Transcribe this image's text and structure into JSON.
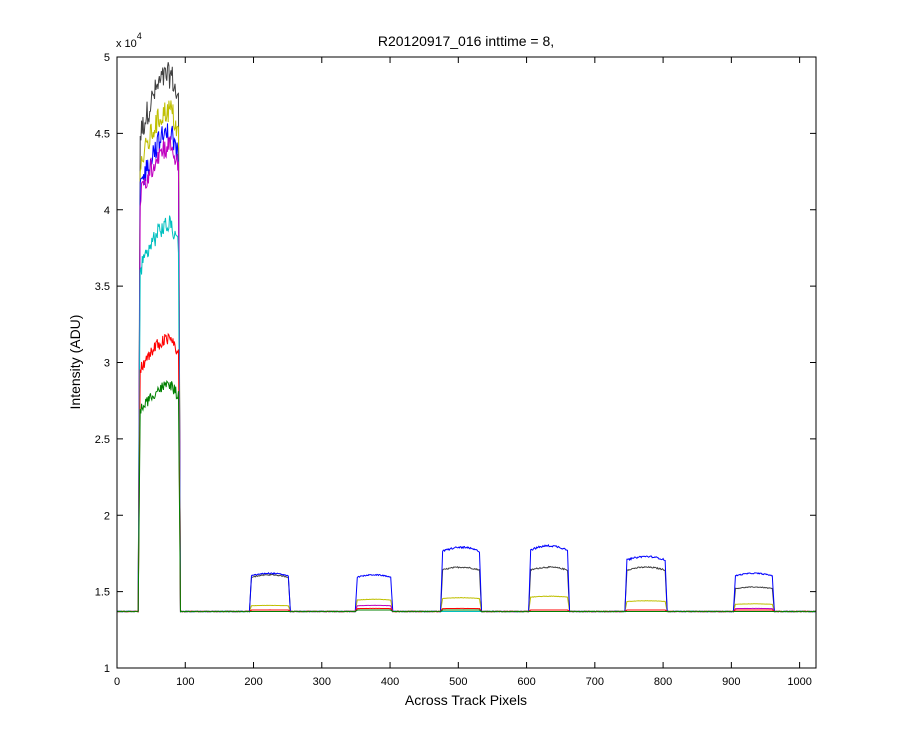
{
  "chart_data": {
    "type": "line",
    "title": "R20120917_016 inttime = 8,",
    "xlabel": "Across Track Pixels",
    "ylabel": "Intensity (ADU)",
    "xlim": [
      0,
      1024
    ],
    "ylim": [
      10000,
      50000
    ],
    "y_exponent_label": "x 10",
    "y_exponent_power": "4",
    "xticks": [
      0,
      100,
      200,
      300,
      400,
      500,
      600,
      700,
      800,
      900,
      1000
    ],
    "yticks": [
      10000,
      15000,
      20000,
      25000,
      30000,
      35000,
      40000,
      45000,
      50000
    ],
    "xtick_labels": [
      "0",
      "100",
      "200",
      "300",
      "400",
      "500",
      "600",
      "700",
      "800",
      "900",
      "1000"
    ],
    "ytick_labels": [
      "1",
      "1.5",
      "2",
      "2.5",
      "3",
      "3.5",
      "4",
      "4.5",
      "5"
    ],
    "grid": false,
    "baseline": 13700,
    "segments": [
      {
        "x_start": 32,
        "x_end": 92
      },
      {
        "x_start": 195,
        "x_end": 253
      },
      {
        "x_start": 350,
        "x_end": 403
      },
      {
        "x_start": 475,
        "x_end": 533
      },
      {
        "x_start": 604,
        "x_end": 662
      },
      {
        "x_start": 745,
        "x_end": 805
      },
      {
        "x_start": 904,
        "x_end": 962
      }
    ],
    "series": [
      {
        "color": "#404040",
        "peaks": [
          48800,
          16100,
          13800,
          16600,
          16600,
          16600,
          15300
        ]
      },
      {
        "color": "#bfbf00",
        "peaks": [
          46500,
          14100,
          14500,
          14600,
          14700,
          14400,
          14200
        ]
      },
      {
        "color": "#0000ff",
        "peaks": [
          45000,
          16200,
          16100,
          17900,
          18000,
          17300,
          16200
        ]
      },
      {
        "color": "#bf00bf",
        "peaks": [
          44200,
          13800,
          14100,
          13800,
          13800,
          13800,
          13900
        ]
      },
      {
        "color": "#00bfbf",
        "peaks": [
          39000,
          13700,
          13800,
          13700,
          13700,
          13700,
          13700
        ]
      },
      {
        "color": "#ff0000",
        "peaks": [
          31500,
          13800,
          13900,
          13900,
          13800,
          13800,
          13800
        ]
      },
      {
        "color": "#008000",
        "peaks": [
          28500,
          13700,
          13800,
          13800,
          13700,
          13700,
          13700
        ]
      }
    ]
  }
}
